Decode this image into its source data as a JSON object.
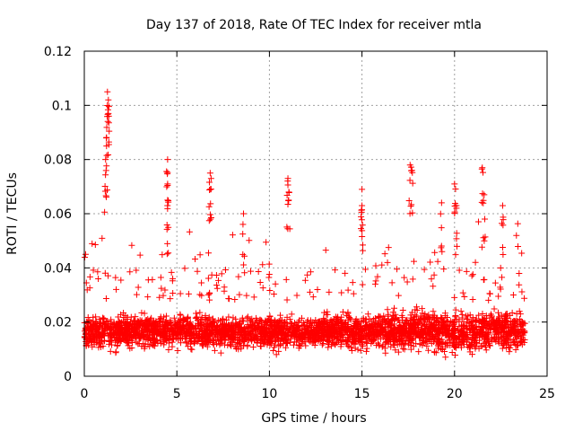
{
  "chart_data": {
    "type": "scatter",
    "title": "Day 137 of 2018, Rate Of TEC Index for receiver mtla",
    "xlabel": "GPS time / hours",
    "ylabel": "ROTI / TECUs",
    "xlim": [
      0,
      25
    ],
    "ylim": [
      0,
      0.12
    ],
    "x_ticks": [
      0,
      5,
      10,
      15,
      20,
      25
    ],
    "x_tick_labels": [
      "0",
      "5",
      "10",
      "15",
      "20",
      "25"
    ],
    "y_ticks": [
      0,
      0.02,
      0.04,
      0.06,
      0.08,
      0.1,
      0.12
    ],
    "y_tick_labels": [
      "0",
      "0.02",
      "0.04",
      "0.06",
      "0.08",
      "0.1",
      "0.12"
    ],
    "grid": true,
    "marker": "plus",
    "color": "#ff0000",
    "series": [
      {
        "name": "ROTI",
        "x_range": [
          0.0,
          23.8
        ],
        "typical_band": [
          0.008,
          0.03
        ],
        "notable_peaks": [
          {
            "x": 1.25,
            "y": 0.105
          },
          {
            "x": 1.3,
            "y": 0.102
          },
          {
            "x": 1.3,
            "y": 0.097
          },
          {
            "x": 1.2,
            "y": 0.085
          },
          {
            "x": 1.15,
            "y": 0.08
          },
          {
            "x": 4.5,
            "y": 0.08
          },
          {
            "x": 4.5,
            "y": 0.071
          },
          {
            "x": 4.5,
            "y": 0.065
          },
          {
            "x": 6.8,
            "y": 0.075
          },
          {
            "x": 6.85,
            "y": 0.073
          },
          {
            "x": 8.6,
            "y": 0.06
          },
          {
            "x": 11.0,
            "y": 0.073
          },
          {
            "x": 11.05,
            "y": 0.068
          },
          {
            "x": 15.0,
            "y": 0.069
          },
          {
            "x": 15.0,
            "y": 0.063
          },
          {
            "x": 17.6,
            "y": 0.078
          },
          {
            "x": 17.7,
            "y": 0.076
          },
          {
            "x": 19.3,
            "y": 0.064
          },
          {
            "x": 20.0,
            "y": 0.071
          },
          {
            "x": 20.1,
            "y": 0.063
          },
          {
            "x": 21.5,
            "y": 0.077
          },
          {
            "x": 21.6,
            "y": 0.067
          },
          {
            "x": 22.6,
            "y": 0.063
          }
        ]
      }
    ]
  }
}
